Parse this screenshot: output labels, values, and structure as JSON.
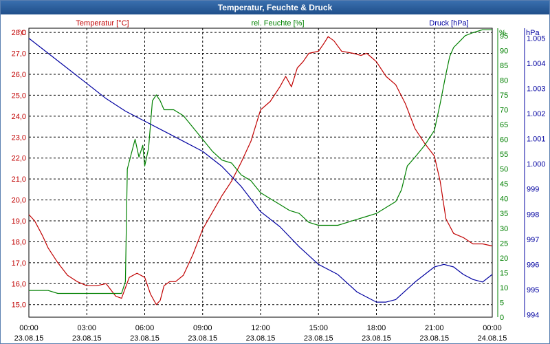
{
  "window": {
    "title": "Temperatur, Feuchte & Druck"
  },
  "chart_data": {
    "type": "line",
    "title": "Temperatur, Feuchte & Druck",
    "grid": true,
    "colors": {
      "temperature": "#c00000",
      "humidity": "#008000",
      "pressure": "#0000a0",
      "grid": "#000000"
    },
    "x": {
      "unit": "hours",
      "range": [
        0,
        24
      ],
      "ticks": [
        0,
        3,
        6,
        9,
        12,
        15,
        18,
        21,
        24
      ],
      "tick_times": [
        "00:00",
        "03:00",
        "06:00",
        "09:00",
        "12:00",
        "15:00",
        "18:00",
        "21:00",
        "00:00"
      ],
      "tick_dates": [
        "23.08.15",
        "23.08.15",
        "23.08.15",
        "23.08.15",
        "23.08.15",
        "23.08.15",
        "23.08.15",
        "23.08.15",
        "24.08.15"
      ]
    },
    "axes": {
      "temperature": {
        "label": "Temperatur [°C]",
        "unit": "°C",
        "range": [
          14.4,
          28.2
        ],
        "ticks": [
          "28,0",
          "27,0",
          "26,0",
          "25,0",
          "24,0",
          "23,0",
          "22,0",
          "21,0",
          "20,0",
          "19,0",
          "18,0",
          "17,0",
          "16,0",
          "15,0"
        ],
        "tick_values": [
          28,
          27,
          26,
          25,
          24,
          23,
          22,
          21,
          20,
          19,
          18,
          17,
          16,
          15
        ]
      },
      "humidity": {
        "label": "rel. Feuchte [%]",
        "unit": "%",
        "range": [
          0,
          97.5
        ],
        "ticks": [
          "95",
          "90",
          "85",
          "80",
          "75",
          "70",
          "65",
          "60",
          "55",
          "50",
          "45",
          "40",
          "35",
          "30",
          "25",
          "20",
          "15",
          "10",
          "5",
          "0"
        ],
        "tick_values": [
          95,
          90,
          85,
          80,
          75,
          70,
          65,
          60,
          55,
          50,
          45,
          40,
          35,
          30,
          25,
          20,
          15,
          10,
          5,
          0
        ]
      },
      "pressure": {
        "label": "Druck [hPa]",
        "unit": "hPa",
        "range": [
          993.9,
          1005.4
        ],
        "ticks": [
          "1.005",
          "1.004",
          "1.003",
          "1.002",
          "1.001",
          "1.000",
          "999",
          "998",
          "997",
          "996",
          "995",
          "994"
        ],
        "tick_values": [
          1005,
          1004,
          1003,
          1002,
          1001,
          1000,
          999,
          998,
          997,
          996,
          995,
          994
        ]
      }
    },
    "series": [
      {
        "name": "Temperatur [°C]",
        "axis": "temperature",
        "x": [
          0,
          0.3,
          0.7,
          1,
          1.5,
          2,
          2.5,
          3,
          3.5,
          4,
          4.5,
          4.8,
          5.2,
          5.6,
          6,
          6.3,
          6.6,
          6.8,
          7,
          7.3,
          7.6,
          8,
          8.5,
          9,
          9.5,
          10,
          10.5,
          11,
          11.5,
          12,
          12.5,
          13,
          13.3,
          13.6,
          13.9,
          14.2,
          14.5,
          15,
          15.3,
          15.5,
          15.8,
          16.2,
          16.8,
          17.2,
          17.5,
          18,
          18.5,
          19,
          19.5,
          20,
          20.5,
          21,
          21.3,
          21.6,
          22,
          22.5,
          23,
          23.5,
          24
        ],
        "values": [
          19.3,
          19.0,
          18.3,
          17.7,
          17.0,
          16.4,
          16.1,
          15.9,
          15.9,
          16.0,
          15.4,
          15.3,
          16.3,
          16.5,
          16.3,
          15.5,
          15.0,
          15.2,
          15.9,
          16.1,
          16.1,
          16.4,
          17.4,
          18.6,
          19.4,
          20.2,
          20.9,
          21.8,
          22.8,
          24.3,
          24.7,
          25.4,
          25.9,
          25.4,
          26.3,
          26.6,
          27.0,
          27.1,
          27.5,
          27.8,
          27.6,
          27.1,
          27.0,
          26.9,
          27.0,
          26.6,
          25.9,
          25.5,
          24.6,
          23.4,
          22.7,
          22.1,
          20.9,
          19.1,
          18.4,
          18.2,
          17.9,
          17.9,
          17.8
        ]
      },
      {
        "name": "rel. Feuchte [%]",
        "axis": "humidity",
        "x": [
          0,
          1,
          1.5,
          3,
          4,
          4.8,
          5,
          5.1,
          5.3,
          5.5,
          5.7,
          5.9,
          6,
          6.2,
          6.4,
          6.6,
          6.8,
          7,
          7.5,
          8,
          8.5,
          9,
          9.5,
          10,
          10.5,
          11,
          11.5,
          12,
          12.5,
          13,
          13.5,
          14,
          14.5,
          15,
          15.5,
          16,
          16.5,
          17,
          17.5,
          18,
          18.5,
          19,
          19.3,
          19.6,
          20,
          20.5,
          21,
          21.3,
          21.6,
          21.8,
          22,
          22.3,
          22.6,
          23,
          23.5,
          24
        ],
        "values": [
          9,
          9,
          8,
          8,
          8,
          8,
          12,
          50,
          55,
          60,
          54,
          58,
          51,
          57,
          73,
          75,
          73,
          70,
          70,
          68,
          64,
          60,
          56,
          53,
          52,
          48,
          46,
          42,
          40,
          38,
          36,
          35,
          32,
          31,
          31,
          31,
          32,
          33,
          34,
          35,
          37,
          39,
          43,
          51,
          54,
          58,
          63,
          72,
          82,
          88,
          91,
          93,
          95,
          96,
          97,
          97
        ]
      },
      {
        "name": "Druck [hPa]",
        "axis": "pressure",
        "x": [
          0,
          1,
          2,
          3,
          4,
          5,
          6,
          7,
          8,
          9,
          10,
          11,
          12,
          13,
          14,
          15,
          16,
          17,
          18,
          18.5,
          19,
          20,
          21,
          21.5,
          22,
          22.5,
          23,
          23.5,
          24
        ],
        "values": [
          1005.0,
          1004.4,
          1003.8,
          1003.2,
          1002.6,
          1002.1,
          1001.7,
          1001.3,
          1000.9,
          1000.5,
          999.9,
          999.1,
          998.1,
          997.5,
          996.7,
          996.0,
          995.6,
          994.9,
          994.5,
          994.5,
          994.6,
          995.3,
          995.9,
          996.0,
          995.9,
          995.6,
          995.4,
          995.3,
          995.6
        ]
      }
    ]
  }
}
